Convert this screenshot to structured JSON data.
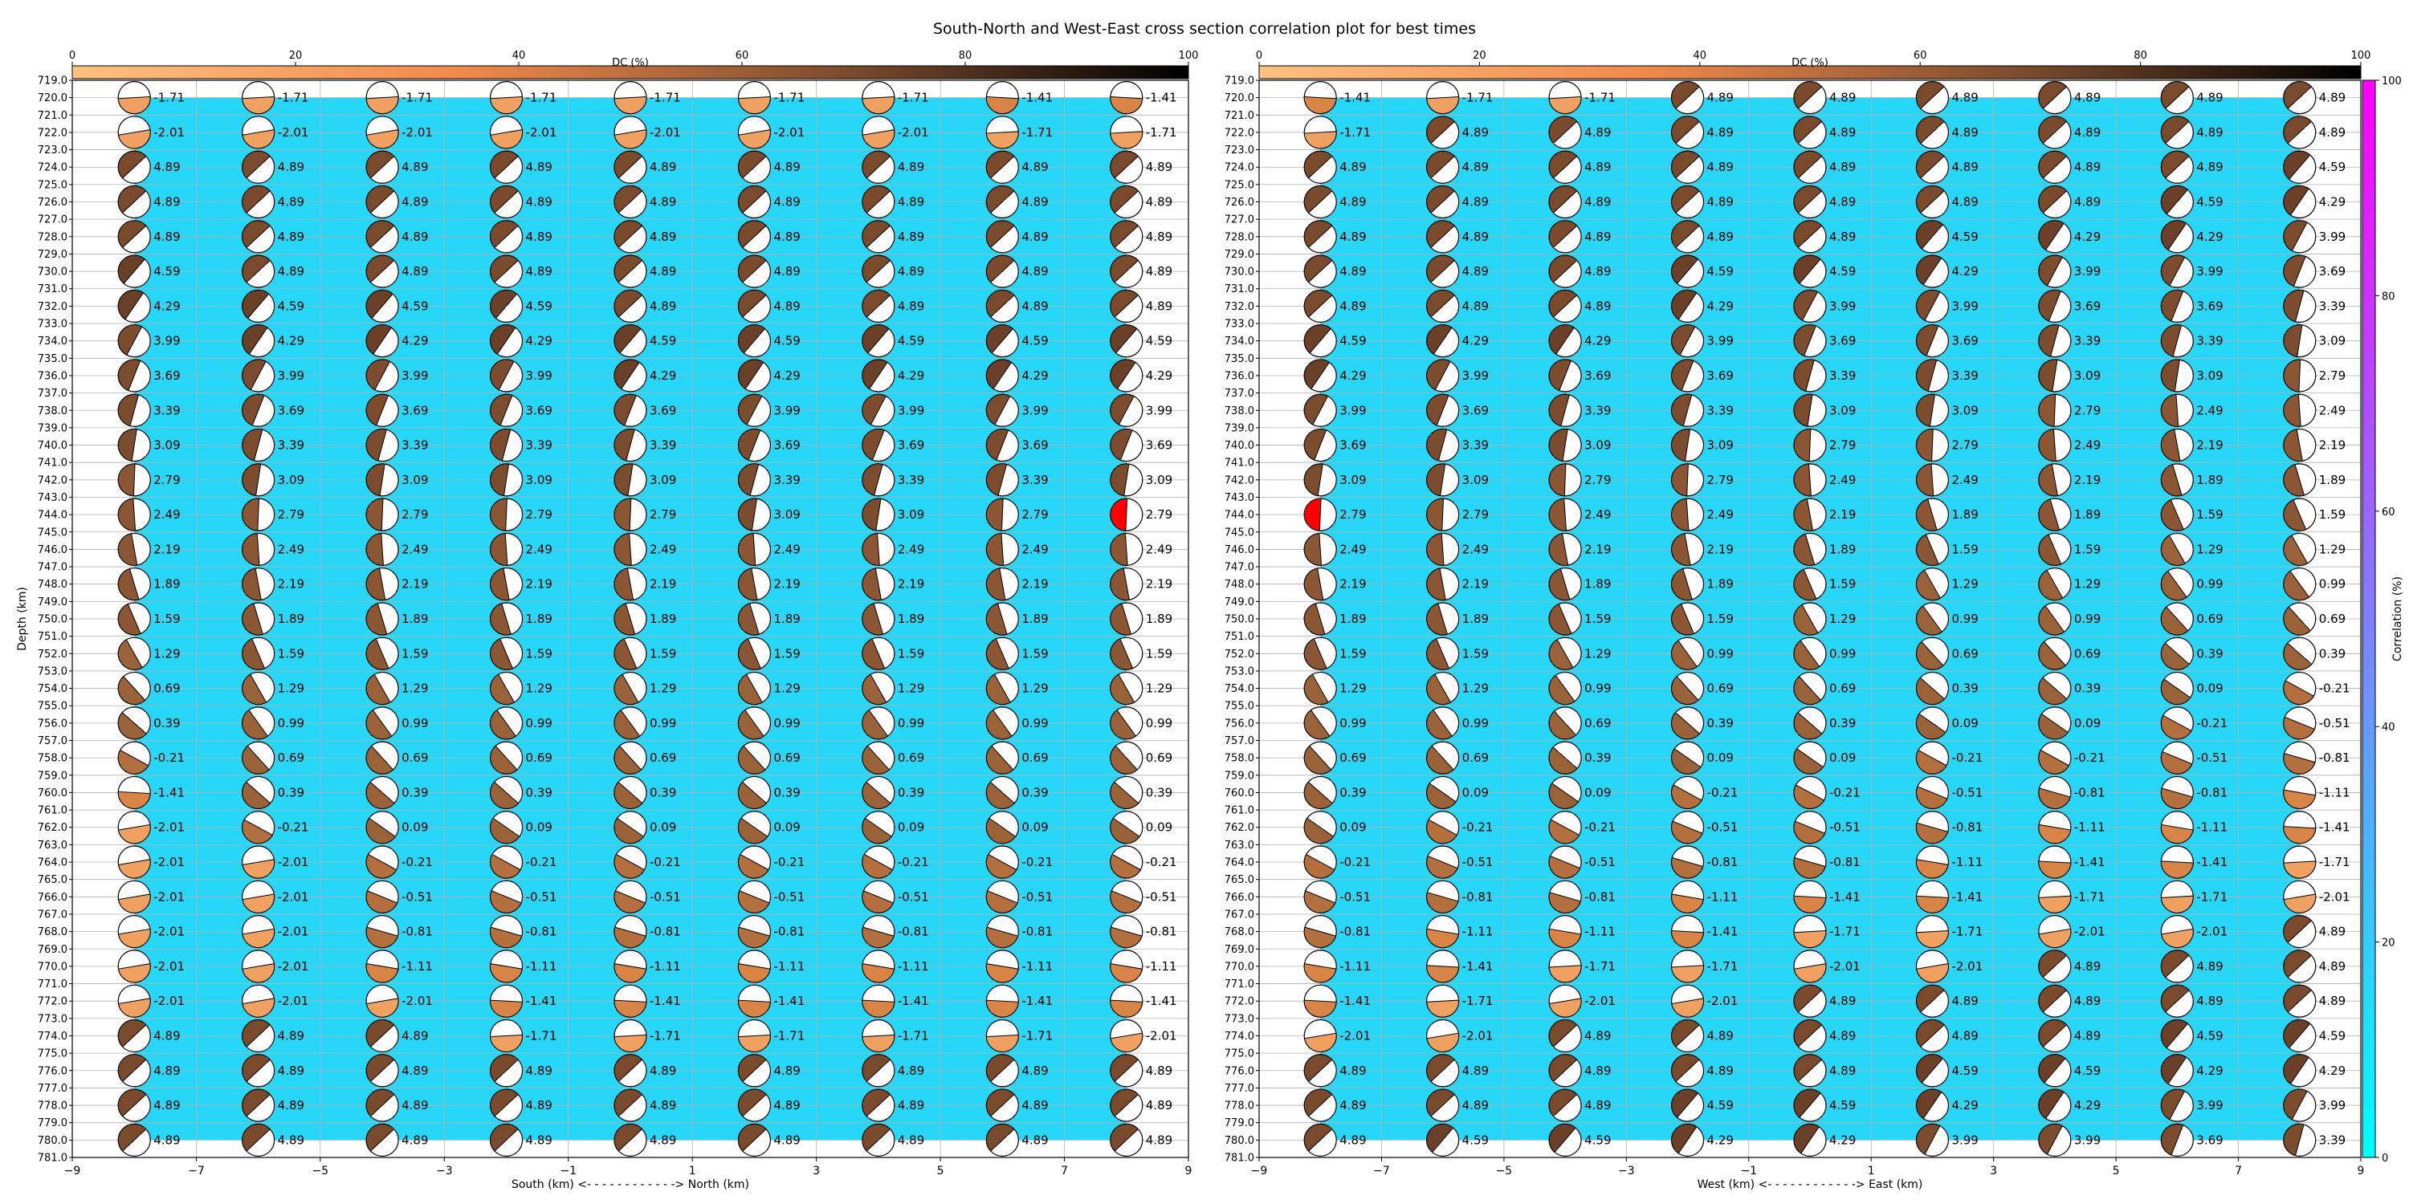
{
  "title": "South-North and West-East cross section correlation plot for best times",
  "colors": {
    "background_fill": "#28d7f7",
    "grid": "#b0b0b0",
    "best_fit": "#ff0000",
    "dc_scale": [
      "#ffc080",
      "#f08a4b",
      "#7a4a2c",
      "#000000"
    ],
    "corr_scale": [
      "#00ffff",
      "#ff00ff"
    ]
  },
  "colorbar_dc": {
    "label": "DC (%)",
    "ticks": [
      "0",
      "20",
      "40",
      "60",
      "80",
      "100"
    ],
    "range": [
      0,
      100
    ]
  },
  "colorbar_corr": {
    "label": "Correlation (%)",
    "ticks": [
      "0",
      "20",
      "40",
      "60",
      "80",
      "100"
    ],
    "range": [
      0,
      100
    ]
  },
  "chart_data": [
    {
      "type": "scatter",
      "name_hint": "left-panel",
      "xlabel": "South (km) <- - - - - - - - - - - -> North (km)",
      "ylabel": "Depth (km)",
      "xlim": [
        -9,
        9
      ],
      "ylim": [
        781,
        719
      ],
      "xticks": [
        -9,
        -7,
        -5,
        -3,
        -1,
        1,
        3,
        5,
        7,
        9
      ],
      "yticks_start": 719,
      "yticks_end": 781,
      "x": [
        -8,
        -6,
        -4,
        -2,
        0,
        2,
        4,
        6,
        8
      ],
      "depths": [
        720,
        722,
        724,
        726,
        728,
        730,
        732,
        734,
        736,
        738,
        740,
        742,
        744,
        746,
        748,
        750,
        752,
        754,
        756,
        758,
        760,
        762,
        764,
        766,
        768,
        770,
        772,
        774,
        776,
        778,
        780
      ],
      "best": {
        "x": 8,
        "depth": 744
      },
      "values": [
        [
          "-1.71",
          "-1.71",
          "-1.71",
          "-1.71",
          "-1.71",
          "-1.71",
          "-1.71",
          "-1.41",
          "-1.41"
        ],
        [
          "-2.01",
          "-2.01",
          "-2.01",
          "-2.01",
          "-2.01",
          "-2.01",
          "-2.01",
          "-1.71",
          "-1.71"
        ],
        [
          "4.89",
          "4.89",
          "4.89",
          "4.89",
          "4.89",
          "4.89",
          "4.89",
          "4.89",
          "4.89"
        ],
        [
          "4.89",
          "4.89",
          "4.89",
          "4.89",
          "4.89",
          "4.89",
          "4.89",
          "4.89",
          "4.89"
        ],
        [
          "4.89",
          "4.89",
          "4.89",
          "4.89",
          "4.89",
          "4.89",
          "4.89",
          "4.89",
          "4.89"
        ],
        [
          "4.59",
          "4.89",
          "4.89",
          "4.89",
          "4.89",
          "4.89",
          "4.89",
          "4.89",
          "4.89"
        ],
        [
          "4.29",
          "4.59",
          "4.59",
          "4.59",
          "4.89",
          "4.89",
          "4.89",
          "4.89",
          "4.89"
        ],
        [
          "3.99",
          "4.29",
          "4.29",
          "4.29",
          "4.59",
          "4.59",
          "4.59",
          "4.59",
          "4.59"
        ],
        [
          "3.69",
          "3.99",
          "3.99",
          "3.99",
          "4.29",
          "4.29",
          "4.29",
          "4.29",
          "4.29"
        ],
        [
          "3.39",
          "3.69",
          "3.69",
          "3.69",
          "3.69",
          "3.99",
          "3.99",
          "3.99",
          "3.99"
        ],
        [
          "3.09",
          "3.39",
          "3.39",
          "3.39",
          "3.39",
          "3.69",
          "3.69",
          "3.69",
          "3.69"
        ],
        [
          "2.79",
          "3.09",
          "3.09",
          "3.09",
          "3.09",
          "3.39",
          "3.39",
          "3.39",
          "3.09"
        ],
        [
          "2.49",
          "2.79",
          "2.79",
          "2.79",
          "2.79",
          "3.09",
          "3.09",
          "2.79",
          "2.79"
        ],
        [
          "2.19",
          "2.49",
          "2.49",
          "2.49",
          "2.49",
          "2.49",
          "2.49",
          "2.49",
          "2.49"
        ],
        [
          "1.89",
          "2.19",
          "2.19",
          "2.19",
          "2.19",
          "2.19",
          "2.19",
          "2.19",
          "2.19"
        ],
        [
          "1.59",
          "1.89",
          "1.89",
          "1.89",
          "1.89",
          "1.89",
          "1.89",
          "1.89",
          "1.89"
        ],
        [
          "1.29",
          "1.59",
          "1.59",
          "1.59",
          "1.59",
          "1.59",
          "1.59",
          "1.59",
          "1.59"
        ],
        [
          "0.69",
          "1.29",
          "1.29",
          "1.29",
          "1.29",
          "1.29",
          "1.29",
          "1.29",
          "1.29"
        ],
        [
          "0.39",
          "0.99",
          "0.99",
          "0.99",
          "0.99",
          "0.99",
          "0.99",
          "0.99",
          "0.99"
        ],
        [
          "-0.21",
          "0.69",
          "0.69",
          "0.69",
          "0.69",
          "0.69",
          "0.69",
          "0.69",
          "0.69"
        ],
        [
          "-1.41",
          "0.39",
          "0.39",
          "0.39",
          "0.39",
          "0.39",
          "0.39",
          "0.39",
          "0.39"
        ],
        [
          "-2.01",
          "-0.21",
          "0.09",
          "0.09",
          "0.09",
          "0.09",
          "0.09",
          "0.09",
          "0.09"
        ],
        [
          "-2.01",
          "-2.01",
          "-0.21",
          "-0.21",
          "-0.21",
          "-0.21",
          "-0.21",
          "-0.21",
          "-0.21"
        ],
        [
          "-2.01",
          "-2.01",
          "-0.51",
          "-0.51",
          "-0.51",
          "-0.51",
          "-0.51",
          "-0.51",
          "-0.51"
        ],
        [
          "-2.01",
          "-2.01",
          "-0.81",
          "-0.81",
          "-0.81",
          "-0.81",
          "-0.81",
          "-0.81",
          "-0.81"
        ],
        [
          "-2.01",
          "-2.01",
          "-1.11",
          "-1.11",
          "-1.11",
          "-1.11",
          "-1.11",
          "-1.11",
          "-1.11"
        ],
        [
          "-2.01",
          "-2.01",
          "-2.01",
          "-1.41",
          "-1.41",
          "-1.41",
          "-1.41",
          "-1.41",
          "-1.41"
        ],
        [
          "4.89",
          "4.89",
          "4.89",
          "-1.71",
          "-1.71",
          "-1.71",
          "-1.71",
          "-1.71",
          "-2.01"
        ],
        [
          "4.89",
          "4.89",
          "4.89",
          "4.89",
          "4.89",
          "4.89",
          "4.89",
          "4.89",
          "4.89"
        ],
        [
          "4.89",
          "4.89",
          "4.89",
          "4.89",
          "4.89",
          "4.89",
          "4.89",
          "4.89",
          "4.89"
        ],
        [
          "4.89",
          "4.89",
          "4.89",
          "4.89",
          "4.89",
          "4.89",
          "4.89",
          "4.89",
          "4.89"
        ]
      ]
    },
    {
      "type": "scatter",
      "name_hint": "right-panel",
      "xlabel": "West (km) <- - - - - - - - - - - -> East (km)",
      "ylabel": "",
      "xlim": [
        -9,
        9
      ],
      "ylim": [
        781,
        719
      ],
      "xticks": [
        -9,
        -7,
        -5,
        -3,
        -1,
        1,
        3,
        5,
        7,
        9
      ],
      "yticks_start": 719,
      "yticks_end": 781,
      "x": [
        -8,
        -6,
        -4,
        -2,
        0,
        2,
        4,
        6,
        8
      ],
      "depths": [
        720,
        722,
        724,
        726,
        728,
        730,
        732,
        734,
        736,
        738,
        740,
        742,
        744,
        746,
        748,
        750,
        752,
        754,
        756,
        758,
        760,
        762,
        764,
        766,
        768,
        770,
        772,
        774,
        776,
        778,
        780
      ],
      "best": {
        "x": -8,
        "depth": 744
      },
      "values": [
        [
          "-1.41",
          "-1.71",
          "-1.71",
          "4.89",
          "4.89",
          "4.89",
          "4.89",
          "4.89",
          "4.89"
        ],
        [
          "-1.71",
          "4.89",
          "4.89",
          "4.89",
          "4.89",
          "4.89",
          "4.89",
          "4.89",
          "4.89"
        ],
        [
          "4.89",
          "4.89",
          "4.89",
          "4.89",
          "4.89",
          "4.89",
          "4.89",
          "4.89",
          "4.59"
        ],
        [
          "4.89",
          "4.89",
          "4.89",
          "4.89",
          "4.89",
          "4.89",
          "4.89",
          "4.59",
          "4.29"
        ],
        [
          "4.89",
          "4.89",
          "4.89",
          "4.89",
          "4.89",
          "4.59",
          "4.29",
          "4.29",
          "3.99"
        ],
        [
          "4.89",
          "4.89",
          "4.89",
          "4.59",
          "4.59",
          "4.29",
          "3.99",
          "3.99",
          "3.69"
        ],
        [
          "4.89",
          "4.89",
          "4.89",
          "4.29",
          "3.99",
          "3.99",
          "3.69",
          "3.69",
          "3.39"
        ],
        [
          "4.59",
          "4.29",
          "4.29",
          "3.99",
          "3.69",
          "3.69",
          "3.39",
          "3.39",
          "3.09"
        ],
        [
          "4.29",
          "3.99",
          "3.69",
          "3.69",
          "3.39",
          "3.39",
          "3.09",
          "3.09",
          "2.79"
        ],
        [
          "3.99",
          "3.69",
          "3.39",
          "3.39",
          "3.09",
          "3.09",
          "2.79",
          "2.49",
          "2.49"
        ],
        [
          "3.69",
          "3.39",
          "3.09",
          "3.09",
          "2.79",
          "2.79",
          "2.49",
          "2.19",
          "2.19"
        ],
        [
          "3.09",
          "3.09",
          "2.79",
          "2.79",
          "2.49",
          "2.49",
          "2.19",
          "1.89",
          "1.89"
        ],
        [
          "2.79",
          "2.79",
          "2.49",
          "2.49",
          "2.19",
          "1.89",
          "1.89",
          "1.59",
          "1.59"
        ],
        [
          "2.49",
          "2.49",
          "2.19",
          "2.19",
          "1.89",
          "1.59",
          "1.59",
          "1.29",
          "1.29"
        ],
        [
          "2.19",
          "2.19",
          "1.89",
          "1.89",
          "1.59",
          "1.29",
          "1.29",
          "0.99",
          "0.99"
        ],
        [
          "1.89",
          "1.89",
          "1.59",
          "1.59",
          "1.29",
          "0.99",
          "0.99",
          "0.69",
          "0.69"
        ],
        [
          "1.59",
          "1.59",
          "1.29",
          "0.99",
          "0.99",
          "0.69",
          "0.69",
          "0.39",
          "0.39"
        ],
        [
          "1.29",
          "1.29",
          "0.99",
          "0.69",
          "0.69",
          "0.39",
          "0.39",
          "0.09",
          "-0.21"
        ],
        [
          "0.99",
          "0.99",
          "0.69",
          "0.39",
          "0.39",
          "0.09",
          "0.09",
          "-0.21",
          "-0.51"
        ],
        [
          "0.69",
          "0.69",
          "0.39",
          "0.09",
          "0.09",
          "-0.21",
          "-0.21",
          "-0.51",
          "-0.81"
        ],
        [
          "0.39",
          "0.09",
          "0.09",
          "-0.21",
          "-0.21",
          "-0.51",
          "-0.81",
          "-0.81",
          "-1.11"
        ],
        [
          "0.09",
          "-0.21",
          "-0.21",
          "-0.51",
          "-0.51",
          "-0.81",
          "-1.11",
          "-1.11",
          "-1.41"
        ],
        [
          "-0.21",
          "-0.51",
          "-0.51",
          "-0.81",
          "-0.81",
          "-1.11",
          "-1.41",
          "-1.41",
          "-1.71"
        ],
        [
          "-0.51",
          "-0.81",
          "-0.81",
          "-1.11",
          "-1.41",
          "-1.41",
          "-1.71",
          "-1.71",
          "-2.01"
        ],
        [
          "-0.81",
          "-1.11",
          "-1.11",
          "-1.41",
          "-1.71",
          "-1.71",
          "-2.01",
          "-2.01",
          "4.89"
        ],
        [
          "-1.11",
          "-1.41",
          "-1.71",
          "-1.71",
          "-2.01",
          "-2.01",
          "4.89",
          "4.89",
          "4.89"
        ],
        [
          "-1.41",
          "-1.71",
          "-2.01",
          "-2.01",
          "4.89",
          "4.89",
          "4.89",
          "4.89",
          "4.89"
        ],
        [
          "-2.01",
          "-2.01",
          "4.89",
          "4.89",
          "4.89",
          "4.89",
          "4.89",
          "4.59",
          "4.59"
        ],
        [
          "4.89",
          "4.89",
          "4.89",
          "4.89",
          "4.89",
          "4.59",
          "4.59",
          "4.29",
          "4.29"
        ],
        [
          "4.89",
          "4.89",
          "4.89",
          "4.59",
          "4.59",
          "4.29",
          "4.29",
          "3.99",
          "3.99"
        ],
        [
          "4.89",
          "4.59",
          "4.59",
          "4.29",
          "4.29",
          "3.99",
          "3.99",
          "3.69",
          "3.39"
        ]
      ]
    }
  ]
}
